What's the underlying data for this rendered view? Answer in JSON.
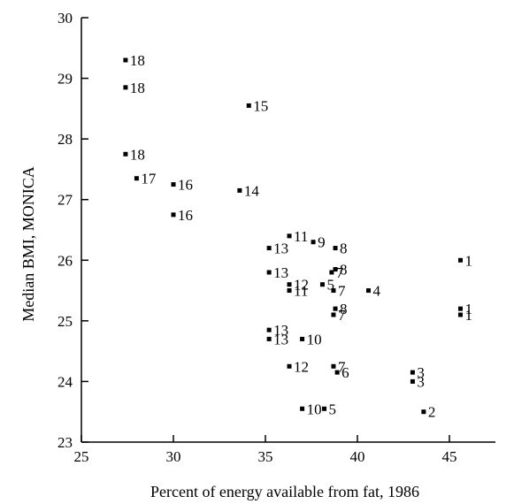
{
  "chart_data": {
    "type": "scatter",
    "title": "",
    "xlabel": "Percent of energy available from fat, 1986",
    "ylabel": "Median BMI, MONICA",
    "xlim": [
      25,
      47.5
    ],
    "ylim": [
      23,
      30
    ],
    "x_ticks": [
      25,
      30,
      35,
      40,
      45
    ],
    "y_ticks": [
      23,
      24,
      25,
      26,
      27,
      28,
      29,
      30
    ],
    "grid": false,
    "points": [
      {
        "x": 27.4,
        "y": 29.3,
        "label": "18"
      },
      {
        "x": 27.4,
        "y": 28.85,
        "label": "18"
      },
      {
        "x": 27.4,
        "y": 27.75,
        "label": "18"
      },
      {
        "x": 28.0,
        "y": 27.35,
        "label": "17"
      },
      {
        "x": 30.0,
        "y": 27.25,
        "label": "16"
      },
      {
        "x": 30.0,
        "y": 26.75,
        "label": "16"
      },
      {
        "x": 34.1,
        "y": 28.55,
        "label": "15"
      },
      {
        "x": 33.6,
        "y": 27.15,
        "label": "14"
      },
      {
        "x": 35.2,
        "y": 26.2,
        "label": "13"
      },
      {
        "x": 35.2,
        "y": 25.8,
        "label": "13"
      },
      {
        "x": 35.2,
        "y": 24.85,
        "label": "13"
      },
      {
        "x": 35.2,
        "y": 24.7,
        "label": "13"
      },
      {
        "x": 36.3,
        "y": 25.6,
        "label": "12"
      },
      {
        "x": 36.3,
        "y": 24.25,
        "label": "12"
      },
      {
        "x": 36.3,
        "y": 26.4,
        "label": "11"
      },
      {
        "x": 36.3,
        "y": 25.5,
        "label": "11"
      },
      {
        "x": 37.0,
        "y": 24.7,
        "label": "10"
      },
      {
        "x": 37.0,
        "y": 23.55,
        "label": "10"
      },
      {
        "x": 37.6,
        "y": 26.3,
        "label": "9"
      },
      {
        "x": 38.8,
        "y": 26.2,
        "label": "8"
      },
      {
        "x": 38.8,
        "y": 25.85,
        "label": "8"
      },
      {
        "x": 38.8,
        "y": 25.2,
        "label": "8"
      },
      {
        "x": 38.6,
        "y": 25.8,
        "label": "7"
      },
      {
        "x": 38.7,
        "y": 25.5,
        "label": "7"
      },
      {
        "x": 38.7,
        "y": 25.1,
        "label": "7"
      },
      {
        "x": 38.7,
        "y": 24.25,
        "label": "7"
      },
      {
        "x": 38.9,
        "y": 24.15,
        "label": "6"
      },
      {
        "x": 38.1,
        "y": 25.6,
        "label": "5"
      },
      {
        "x": 38.2,
        "y": 23.55,
        "label": "5"
      },
      {
        "x": 40.6,
        "y": 25.5,
        "label": "4"
      },
      {
        "x": 43.0,
        "y": 24.15,
        "label": "3"
      },
      {
        "x": 43.0,
        "y": 24.0,
        "label": "3"
      },
      {
        "x": 43.6,
        "y": 23.5,
        "label": "2"
      },
      {
        "x": 45.6,
        "y": 26.0,
        "label": "1"
      },
      {
        "x": 45.6,
        "y": 25.2,
        "label": "1"
      },
      {
        "x": 45.6,
        "y": 25.1,
        "label": "1"
      }
    ]
  }
}
